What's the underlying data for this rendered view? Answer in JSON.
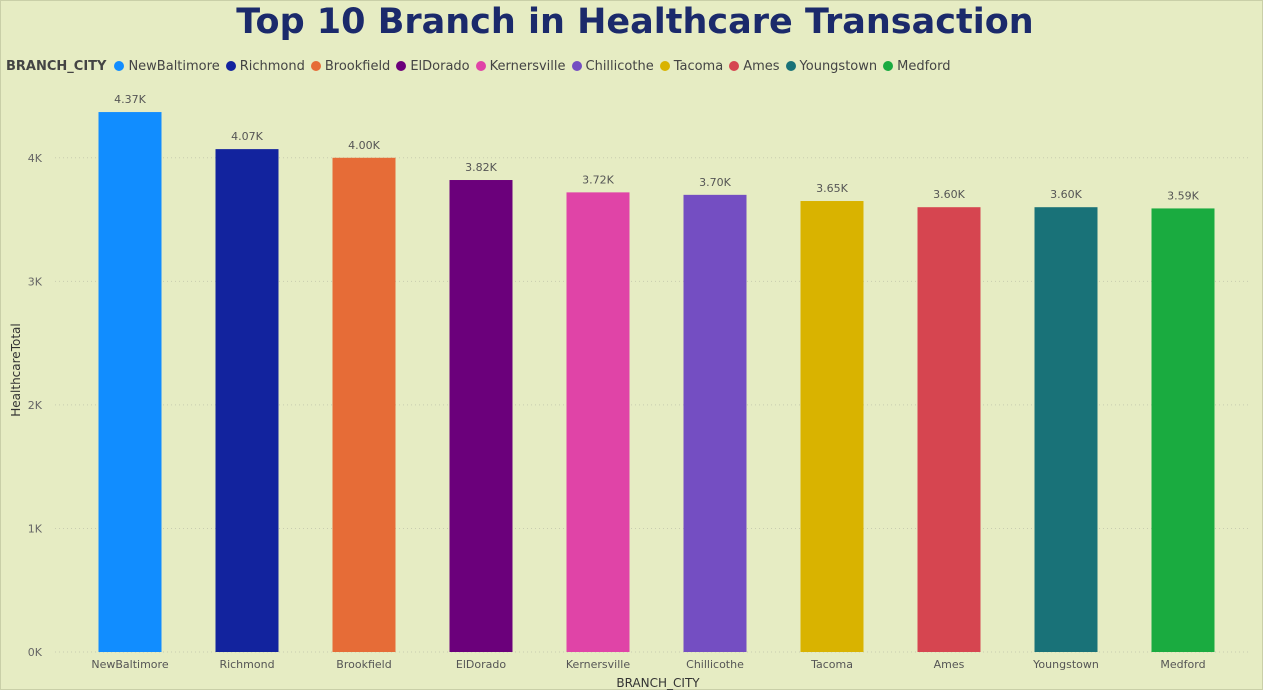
{
  "chart_data": {
    "type": "bar",
    "title": "Top 10 Branch in Healthcare Transaction",
    "legend_title": "BRANCH_CITY",
    "xlabel": "BRANCH_CITY",
    "ylabel": "HealthcareTotal",
    "categories": [
      "NewBaltimore",
      "Richmond",
      "Brookfield",
      "ElDorado",
      "Kernersville",
      "Chillicothe",
      "Tacoma",
      "Ames",
      "Youngstown",
      "Medford"
    ],
    "values": [
      4370,
      4070,
      4000,
      3820,
      3720,
      3700,
      3650,
      3600,
      3600,
      3590
    ],
    "data_labels": [
      "4.37K",
      "4.07K",
      "4.00K",
      "3.82K",
      "3.72K",
      "3.70K",
      "3.65K",
      "3.60K",
      "3.60K",
      "3.59K"
    ],
    "colors": [
      "#118dff",
      "#12239e",
      "#e66c37",
      "#6b007b",
      "#e044a7",
      "#744ec2",
      "#d9b300",
      "#d64550",
      "#197278",
      "#1aab40"
    ],
    "yticks": [
      0,
      1000,
      2000,
      3000,
      4000
    ],
    "ytick_labels": [
      "0K",
      "1K",
      "2K",
      "3K",
      "4K"
    ],
    "ylim": [
      0,
      4500
    ],
    "grid": true,
    "legend_position": "top-left"
  }
}
